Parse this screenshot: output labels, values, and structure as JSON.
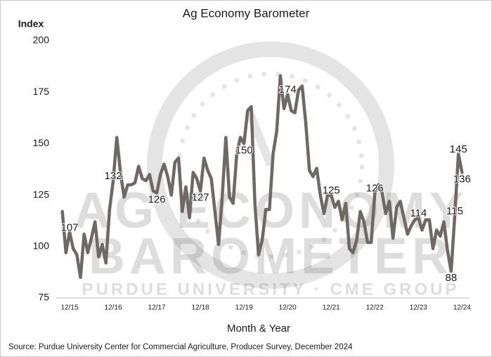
{
  "chart_data": {
    "type": "line",
    "title": "Ag Economy Barometer",
    "y_label": "Index",
    "x_label": "Month & Year",
    "source": "Source: Purdue University Center for Commercial Agriculture, Producer Survey, December 2024",
    "watermark": {
      "line1": "AG ECONOMY",
      "line2": "BAROMETER",
      "line3": "PURDUE UNIVERSITY · CME GROUP"
    },
    "categories": [
      null,
      null,
      "12/15",
      null,
      null,
      null,
      null,
      null,
      null,
      null,
      null,
      null,
      null,
      null,
      "12/16",
      null,
      null,
      null,
      null,
      null,
      null,
      null,
      null,
      null,
      null,
      null,
      "12/17",
      null,
      null,
      null,
      null,
      null,
      null,
      null,
      null,
      null,
      null,
      null,
      "12/18",
      null,
      null,
      null,
      null,
      null,
      null,
      null,
      null,
      null,
      null,
      null,
      "12/19",
      null,
      null,
      null,
      null,
      null,
      null,
      null,
      null,
      null,
      null,
      null,
      "12/20",
      null,
      null,
      null,
      null,
      null,
      null,
      null,
      null,
      null,
      null,
      null,
      "12/21",
      null,
      null,
      null,
      null,
      null,
      null,
      null,
      null,
      null,
      null,
      null,
      "12/22",
      null,
      null,
      null,
      null,
      null,
      null,
      null,
      null,
      null,
      null,
      null,
      "12/23",
      null,
      null,
      null,
      null,
      null,
      null,
      null,
      null,
      null,
      null,
      null,
      "12/24"
    ],
    "series": [
      {
        "name": "Index",
        "color": "#6e6867",
        "values": [
          117,
          97,
          107,
          99,
          96,
          85,
          106,
          97,
          104,
          112,
          95,
          101,
          92,
          118,
          132,
          153,
          136,
          124,
          130,
          130,
          131,
          139,
          133,
          132,
          135,
          127,
          126,
          135,
          140,
          134,
          125,
          141,
          143,
          117,
          129,
          114,
          136,
          133,
          127,
          143,
          137,
          133,
          117,
          101,
          124,
          153,
          124,
          121,
          145,
          153,
          150,
          166,
          168,
          121,
          96,
          103,
          118,
          118,
          145,
          156,
          183,
          167,
          174,
          166,
          165,
          176,
          178,
          160,
          137,
          134,
          138,
          125,
          116,
          125,
          125,
          119,
          122,
          113,
          121,
          99,
          97,
          103,
          117,
          112,
          102,
          102,
          126,
          130,
          126,
          116,
          122,
          104,
          119,
          122,
          114,
          106,
          110,
          113,
          114,
          108,
          113,
          113,
          99,
          108,
          105,
          112,
          98,
          88,
          115,
          145,
          136
        ],
        "value_labels": [
          null,
          null,
          "107",
          null,
          null,
          null,
          null,
          null,
          null,
          null,
          null,
          null,
          null,
          null,
          "132",
          null,
          null,
          null,
          null,
          null,
          null,
          null,
          null,
          null,
          null,
          null,
          "126",
          null,
          null,
          null,
          null,
          null,
          null,
          null,
          null,
          null,
          null,
          null,
          "127",
          null,
          null,
          null,
          null,
          null,
          null,
          null,
          null,
          null,
          null,
          null,
          "150",
          null,
          null,
          null,
          null,
          null,
          null,
          null,
          null,
          null,
          null,
          null,
          "174",
          null,
          null,
          null,
          null,
          null,
          null,
          null,
          null,
          null,
          null,
          null,
          "125",
          null,
          null,
          null,
          null,
          null,
          null,
          null,
          null,
          null,
          null,
          null,
          "126",
          null,
          null,
          null,
          null,
          null,
          null,
          null,
          null,
          null,
          null,
          null,
          "114",
          null,
          null,
          null,
          null,
          null,
          null,
          null,
          null,
          "88",
          "115",
          "145",
          "136"
        ]
      }
    ],
    "ylim": [
      75,
      200
    ],
    "yticks": [
      75,
      100,
      125,
      150,
      175,
      200
    ],
    "grid": false
  }
}
